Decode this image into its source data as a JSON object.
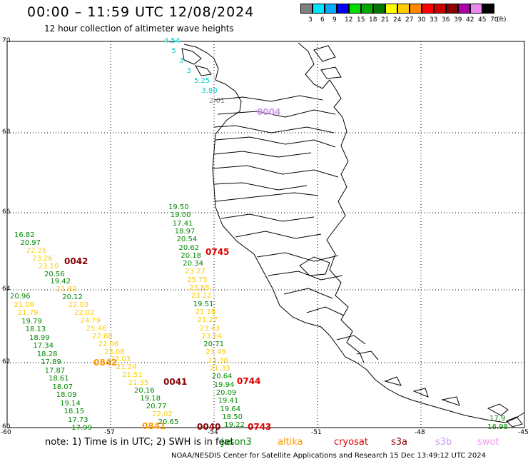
{
  "header": {
    "title": "00:00 – 11:59 UTC 12/08/2024",
    "subtitle": "12 hour collection of altimeter wave heights"
  },
  "colorbar": {
    "unit": "(ft)",
    "bins": [
      {
        "label": "3",
        "color": "#7f7f7f"
      },
      {
        "label": "6",
        "color": "#00e5ff"
      },
      {
        "label": "9",
        "color": "#00aaff"
      },
      {
        "label": "12",
        "color": "#0000ff"
      },
      {
        "label": "15",
        "color": "#00dd00"
      },
      {
        "label": "18",
        "color": "#00aa00"
      },
      {
        "label": "21",
        "color": "#007700"
      },
      {
        "label": "24",
        "color": "#ffff00"
      },
      {
        "label": "27",
        "color": "#ffcc00"
      },
      {
        "label": "30",
        "color": "#ff8800"
      },
      {
        "label": "33",
        "color": "#ff0000"
      },
      {
        "label": "36",
        "color": "#cc0000"
      },
      {
        "label": "39",
        "color": "#880000"
      },
      {
        "label": "42",
        "color": "#aa00aa"
      },
      {
        "label": "45",
        "color": "#ee88ee"
      },
      {
        "label": "70",
        "color": "#000000"
      }
    ]
  },
  "axes": {
    "lat_labels": [
      "70",
      "68",
      "66",
      "64",
      "62",
      "60"
    ],
    "lon_labels": [
      "-60",
      "-57",
      "-54",
      "-51",
      "-48",
      "-45"
    ]
  },
  "colors": {
    "green": "#008800",
    "yellow": "#ffcc00",
    "cyan": "#00cccc",
    "gray": "#888888",
    "darkred": "#880000",
    "red": "#dd0000",
    "orange": "#ff9900",
    "lavender": "#cc99ee"
  },
  "tracks": [
    {
      "name": "track-east-north",
      "items": [
        {
          "v": "4.54",
          "c": "cyan"
        },
        {
          "v": "5",
          "c": "cyan"
        },
        {
          "v": "3",
          "c": "cyan"
        },
        {
          "v": "3",
          "c": "cyan"
        },
        {
          "v": "5.25",
          "c": "cyan"
        },
        {
          "v": "3.80",
          "c": "cyan"
        },
        {
          "v": "2.61",
          "c": "gray"
        }
      ]
    },
    {
      "name": "track-center",
      "items": [
        {
          "v": "19.50",
          "c": "green"
        },
        {
          "v": "19.00",
          "c": "green"
        },
        {
          "v": "17.41",
          "c": "green"
        },
        {
          "v": "18.97",
          "c": "green"
        },
        {
          "v": "20.54",
          "c": "green"
        },
        {
          "v": "20.62",
          "c": "green"
        },
        {
          "v": "20.18",
          "c": "green"
        },
        {
          "v": "20.34",
          "c": "green"
        },
        {
          "v": "23.27",
          "c": "yellow"
        },
        {
          "v": "25.75",
          "c": "yellow"
        },
        {
          "v": "23.88",
          "c": "yellow"
        },
        {
          "v": "23.22",
          "c": "yellow"
        },
        {
          "v": "19.51",
          "c": "green"
        },
        {
          "v": "21.18",
          "c": "yellow"
        },
        {
          "v": "21.27",
          "c": "yellow"
        },
        {
          "v": "23.43",
          "c": "yellow"
        },
        {
          "v": "23.24",
          "c": "yellow"
        },
        {
          "v": "20.71",
          "c": "green"
        },
        {
          "v": "23.49",
          "c": "yellow"
        },
        {
          "v": "23.30",
          "c": "yellow"
        },
        {
          "v": "21.33",
          "c": "yellow"
        },
        {
          "v": "20.64",
          "c": "green"
        },
        {
          "v": "19.94",
          "c": "green"
        },
        {
          "v": "20.09",
          "c": "green"
        },
        {
          "v": "19.41",
          "c": "green"
        },
        {
          "v": "19.64",
          "c": "green"
        },
        {
          "v": "18.50",
          "c": "green"
        },
        {
          "v": "19.22",
          "c": "green"
        }
      ]
    },
    {
      "name": "track-west-a",
      "items": [
        {
          "v": "16.82",
          "c": "green"
        },
        {
          "v": "20.97",
          "c": "green"
        },
        {
          "v": "22.26",
          "c": "yellow"
        },
        {
          "v": "23.26",
          "c": "yellow"
        },
        {
          "v": "23.10",
          "c": "yellow"
        },
        {
          "v": "20.56",
          "c": "green"
        },
        {
          "v": "19.42",
          "c": "green"
        },
        {
          "v": "21.82",
          "c": "yellow"
        },
        {
          "v": "20.12",
          "c": "green"
        },
        {
          "v": "22.03",
          "c": "yellow"
        },
        {
          "v": "22.02",
          "c": "yellow"
        },
        {
          "v": "24.79",
          "c": "yellow"
        },
        {
          "v": "25.46",
          "c": "yellow"
        },
        {
          "v": "22.80",
          "c": "yellow"
        },
        {
          "v": "22.06",
          "c": "yellow"
        },
        {
          "v": "23.08",
          "c": "yellow"
        },
        {
          "v": "23.03",
          "c": "yellow"
        },
        {
          "v": "21.24",
          "c": "yellow"
        },
        {
          "v": "21.51",
          "c": "yellow"
        },
        {
          "v": "21.35",
          "c": "yellow"
        },
        {
          "v": "20.16",
          "c": "green"
        },
        {
          "v": "19.18",
          "c": "green"
        },
        {
          "v": "20.77",
          "c": "green"
        },
        {
          "v": "22.02",
          "c": "yellow"
        },
        {
          "v": "20.65",
          "c": "green"
        }
      ]
    },
    {
      "name": "track-west-b",
      "items": [
        {
          "v": "20.96",
          "c": "green"
        },
        {
          "v": "21.08",
          "c": "yellow"
        },
        {
          "v": "21.79",
          "c": "yellow"
        },
        {
          "v": "19.79",
          "c": "green"
        },
        {
          "v": "18.13",
          "c": "green"
        },
        {
          "v": "18.99",
          "c": "green"
        },
        {
          "v": "17.34",
          "c": "green"
        },
        {
          "v": "18.28",
          "c": "green"
        },
        {
          "v": "17.89",
          "c": "green"
        },
        {
          "v": "17.87",
          "c": "green"
        },
        {
          "v": "18.61",
          "c": "green"
        },
        {
          "v": "18.07",
          "c": "green"
        },
        {
          "v": "18.09",
          "c": "green"
        },
        {
          "v": "19.14",
          "c": "green"
        },
        {
          "v": "18.15",
          "c": "green"
        },
        {
          "v": "17.73",
          "c": "green"
        },
        {
          "v": "17.99",
          "c": "green"
        }
      ]
    },
    {
      "name": "track-southeast",
      "items": [
        {
          "v": "17.9",
          "c": "green"
        },
        {
          "v": "16.98",
          "c": "green"
        }
      ]
    }
  ],
  "pass_times": [
    {
      "t": "0042",
      "c": "darkred"
    },
    {
      "t": "0745",
      "c": "red"
    },
    {
      "t": "0842",
      "c": "orange"
    },
    {
      "t": "0041",
      "c": "darkred"
    },
    {
      "t": "0744",
      "c": "red"
    },
    {
      "t": "0841",
      "c": "orange"
    },
    {
      "t": "0040",
      "c": "darkred"
    },
    {
      "t": "0743",
      "c": "red"
    },
    {
      "t": "0004",
      "c": "lavender"
    }
  ],
  "footer": {
    "note": "note:  1) Time is in UTC;  2) SWH is in feet",
    "missions": [
      {
        "name": "jason3",
        "color": "#008800"
      },
      {
        "name": "altika",
        "color": "#ff9900"
      },
      {
        "name": "cryosat",
        "color": "#dd0000"
      },
      {
        "name": "s3a",
        "color": "#880000"
      },
      {
        "name": "s3b",
        "color": "#cc99ee"
      },
      {
        "name": "swot",
        "color": "#ee99ee"
      }
    ],
    "credit": "NOAA/NESDIS Center for Satellite Applications and Research    15 Dec 13:49:12 UTC 2024"
  }
}
